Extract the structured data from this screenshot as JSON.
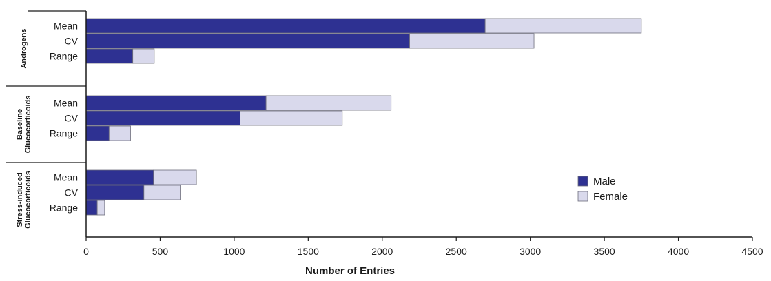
{
  "chart_data": {
    "type": "bar",
    "orientation": "horizontal",
    "stacked": true,
    "title": "",
    "xlabel": "Number of Entries",
    "ylabel": "",
    "xlim": [
      0,
      4500
    ],
    "xticks": [
      0,
      500,
      1000,
      1500,
      2000,
      2500,
      3000,
      3500,
      4000,
      4500
    ],
    "grid": false,
    "legend_position": "right",
    "groups": [
      {
        "label": [
          "Androgens"
        ],
        "categories": [
          "Mean",
          "CV",
          "Range"
        ],
        "series": [
          {
            "name": "Male",
            "values": [
              2695,
              2185,
              315
            ]
          },
          {
            "name": "Female",
            "values": [
              1055,
              840,
              145
            ]
          }
        ]
      },
      {
        "label": [
          "Baseline",
          "Glucocorticoids"
        ],
        "categories": [
          "Mean",
          "CV",
          "Range"
        ],
        "series": [
          {
            "name": "Male",
            "values": [
              1215,
              1040,
              155
            ]
          },
          {
            "name": "Female",
            "values": [
              845,
              690,
              145
            ]
          }
        ]
      },
      {
        "label": [
          "Stress-induced",
          "Glucocorticoids"
        ],
        "categories": [
          "Mean",
          "CV",
          "Range"
        ],
        "series": [
          {
            "name": "Male",
            "values": [
              455,
              390,
              75
            ]
          },
          {
            "name": "Female",
            "values": [
              290,
              245,
              50
            ]
          }
        ]
      }
    ],
    "legend": [
      {
        "name": "Male",
        "color": "#2e3192"
      },
      {
        "name": "Female",
        "color": "#d9d9ec"
      }
    ]
  }
}
